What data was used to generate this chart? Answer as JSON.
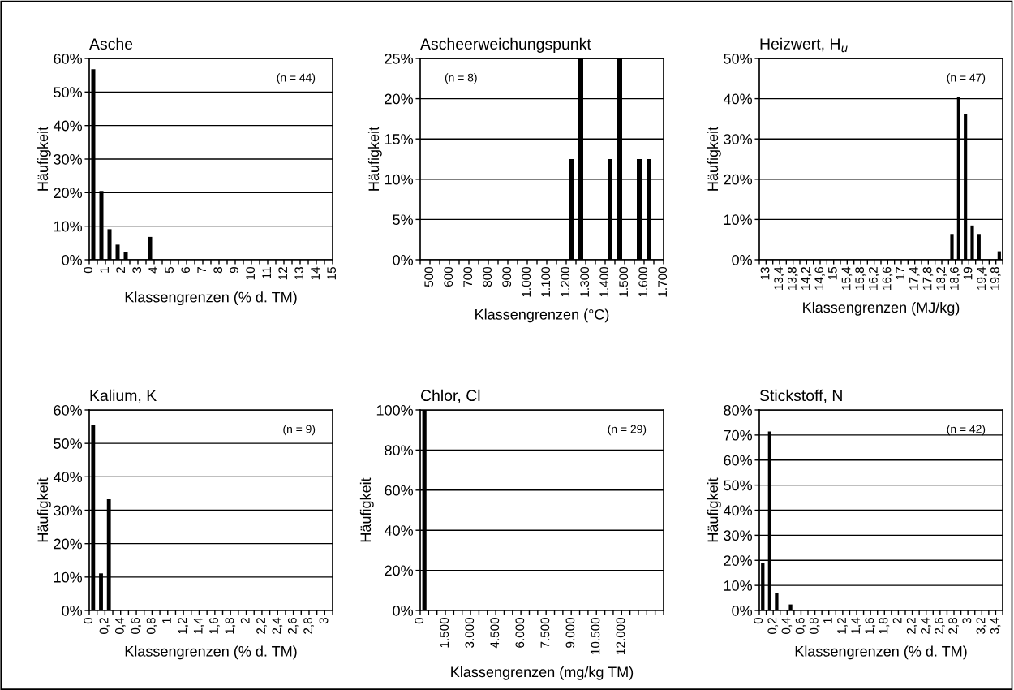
{
  "chart_data": [
    {
      "type": "histogram",
      "title": "Asche",
      "xlabel": "Klassengrenzen (% d. TM)",
      "ylabel": "Häufigkeit",
      "annotations": [
        "(n = 44)"
      ],
      "color": "#000000",
      "grid": "y",
      "bins": [
        0,
        0.5,
        1,
        1.5,
        2,
        2.5,
        3,
        3.5,
        4,
        4.5,
        5,
        5.5,
        6,
        6.5,
        7,
        7.5,
        8,
        8.5,
        9,
        9.5,
        10,
        10.5,
        11,
        11.5,
        12,
        12.5,
        13,
        13.5,
        14,
        14.5,
        15
      ],
      "values": [
        56.8,
        20.5,
        9.1,
        4.5,
        2.3,
        0,
        0,
        6.8,
        0,
        0,
        0,
        0,
        0,
        0,
        0,
        0,
        0,
        0,
        0,
        0,
        0,
        0,
        0,
        0,
        0,
        0,
        0,
        0,
        0,
        0
      ],
      "xlim": [
        0,
        15
      ],
      "xticks": [
        0,
        {
          "value": 0.5,
          "label": null
        },
        1,
        {
          "value": 1.5,
          "label": null
        },
        2,
        {
          "value": 2.5,
          "label": null
        },
        3,
        {
          "value": 3.5,
          "label": null
        },
        4,
        {
          "value": 4.5,
          "label": null
        },
        5,
        {
          "value": 5.5,
          "label": null
        },
        6,
        {
          "value": 6.5,
          "label": null
        },
        7,
        {
          "value": 7.5,
          "label": null
        },
        8,
        {
          "value": 8.5,
          "label": null
        },
        9,
        {
          "value": 9.5,
          "label": null
        },
        10,
        {
          "value": 10.5,
          "label": null
        },
        11,
        {
          "value": 11.5,
          "label": null
        },
        12,
        {
          "value": 12.5,
          "label": null
        },
        13,
        {
          "value": 13.5,
          "label": null
        },
        14,
        {
          "value": 14.5,
          "label": null
        },
        15
      ],
      "ylim": [
        0,
        60
      ],
      "yticks": [
        {
          "value": 0,
          "label": "0%"
        },
        {
          "value": 10,
          "label": "10%"
        },
        {
          "value": 20,
          "label": "20%"
        },
        {
          "value": 30,
          "label": "30%"
        },
        {
          "value": 40,
          "label": "40%"
        },
        {
          "value": 50,
          "label": "50%"
        },
        {
          "value": 60,
          "label": "60%"
        }
      ]
    },
    {
      "type": "histogram",
      "title": "Ascheerweichungspunkt",
      "xlabel": "Klassengrenzen (°C)",
      "ylabel": "Häufigkeit",
      "annotations": [
        "(n = 8)"
      ],
      "color": "#000000",
      "grid": "y",
      "bins": [
        450,
        500,
        550,
        600,
        650,
        700,
        750,
        800,
        850,
        900,
        950,
        1000,
        1050,
        1100,
        1150,
        1200,
        1250,
        1300,
        1350,
        1400,
        1450,
        1500,
        1550,
        1600,
        1650,
        1700
      ],
      "values": [
        0,
        0,
        0,
        0,
        0,
        0,
        0,
        0,
        0,
        0,
        0,
        0,
        0,
        0,
        0,
        12.5,
        25,
        0,
        0,
        12.5,
        25,
        0,
        12.5,
        12.5,
        0
      ],
      "xlim": [
        450,
        1700
      ],
      "xticks": [
        {
          "value": 450,
          "label": null
        },
        500,
        {
          "value": 550,
          "label": null
        },
        600,
        {
          "value": 650,
          "label": null
        },
        700,
        {
          "value": 750,
          "label": null
        },
        800,
        {
          "value": 850,
          "label": null
        },
        900,
        {
          "value": 950,
          "label": null
        },
        {
          "value": 1000,
          "label": "1.000"
        },
        {
          "value": 1050,
          "label": null
        },
        {
          "value": 1100,
          "label": "1.100"
        },
        {
          "value": 1150,
          "label": null
        },
        {
          "value": 1200,
          "label": "1.200"
        },
        {
          "value": 1250,
          "label": null
        },
        {
          "value": 1300,
          "label": "1.300"
        },
        {
          "value": 1350,
          "label": null
        },
        {
          "value": 1400,
          "label": "1.400"
        },
        {
          "value": 1450,
          "label": null
        },
        {
          "value": 1500,
          "label": "1.500"
        },
        {
          "value": 1550,
          "label": null
        },
        {
          "value": 1600,
          "label": "1.600"
        },
        {
          "value": 1650,
          "label": null
        },
        {
          "value": 1700,
          "label": "1.700"
        }
      ],
      "ylim": [
        0,
        25
      ],
      "yticks": [
        {
          "value": 0,
          "label": "0%"
        },
        {
          "value": 5,
          "label": "5%"
        },
        {
          "value": 10,
          "label": "10%"
        },
        {
          "value": 15,
          "label": "15%"
        },
        {
          "value": 20,
          "label": "20%"
        },
        {
          "value": 25,
          "label": "25%"
        }
      ]
    },
    {
      "type": "histogram",
      "title": "Heizwert, H$_{u}$",
      "xlabel": "Klassengrenzen (MJ/kg)",
      "ylabel": "Häufigkeit",
      "annotations": [
        "(n = 47)"
      ],
      "color": "#000000",
      "grid": "y",
      "bins": [
        12.8,
        13,
        13.2,
        13.4,
        13.6,
        13.8,
        14,
        14.2,
        14.4,
        14.6,
        14.8,
        15,
        15.2,
        15.4,
        15.6,
        15.8,
        16,
        16.2,
        16.4,
        16.6,
        16.8,
        17,
        17.2,
        17.4,
        17.6,
        17.8,
        18,
        18.2,
        18.4,
        18.6,
        18.8,
        19,
        19.2,
        19.4,
        19.6,
        19.8,
        20
      ],
      "values": [
        0,
        0,
        0,
        0,
        0,
        0,
        0,
        0,
        0,
        0,
        0,
        0,
        0,
        0,
        0,
        0,
        0,
        0,
        0,
        0,
        0,
        0,
        0,
        0,
        0,
        0,
        0,
        0,
        6.4,
        40.4,
        36.2,
        8.5,
        6.4,
        0,
        0,
        2.1
      ],
      "xlim": [
        12.8,
        20
      ],
      "xticks": [
        {
          "value": 12.8,
          "label": null
        },
        13,
        {
          "value": 13.2,
          "label": null
        },
        {
          "value": 13.4,
          "label": "13,4"
        },
        {
          "value": 13.6,
          "label": null
        },
        {
          "value": 13.8,
          "label": "13,8"
        },
        {
          "value": 14,
          "label": null
        },
        {
          "value": 14.2,
          "label": "14,2"
        },
        {
          "value": 14.4,
          "label": null
        },
        {
          "value": 14.6,
          "label": "14,6"
        },
        {
          "value": 14.8,
          "label": null
        },
        15,
        {
          "value": 15.2,
          "label": null
        },
        {
          "value": 15.4,
          "label": "15,4"
        },
        {
          "value": 15.6,
          "label": null
        },
        {
          "value": 15.8,
          "label": "15,8"
        },
        {
          "value": 16,
          "label": null
        },
        {
          "value": 16.2,
          "label": "16,2"
        },
        {
          "value": 16.4,
          "label": null
        },
        {
          "value": 16.6,
          "label": "16,6"
        },
        {
          "value": 16.8,
          "label": null
        },
        17,
        {
          "value": 17.2,
          "label": null
        },
        {
          "value": 17.4,
          "label": "17,4"
        },
        {
          "value": 17.6,
          "label": null
        },
        {
          "value": 17.8,
          "label": "17,8"
        },
        {
          "value": 18,
          "label": null
        },
        {
          "value": 18.2,
          "label": "18,2"
        },
        {
          "value": 18.4,
          "label": null
        },
        {
          "value": 18.6,
          "label": "18,6"
        },
        {
          "value": 18.8,
          "label": null
        },
        19,
        {
          "value": 19.2,
          "label": null
        },
        {
          "value": 19.4,
          "label": "19,4"
        },
        {
          "value": 19.6,
          "label": null
        },
        {
          "value": 19.8,
          "label": "19,8"
        },
        {
          "value": 20,
          "label": null
        }
      ],
      "ylim": [
        0,
        50
      ],
      "yticks": [
        {
          "value": 0,
          "label": "0%"
        },
        {
          "value": 10,
          "label": "10%"
        },
        {
          "value": 20,
          "label": "20%"
        },
        {
          "value": 30,
          "label": "30%"
        },
        {
          "value": 40,
          "label": "40%"
        },
        {
          "value": 50,
          "label": "50%"
        }
      ]
    },
    {
      "type": "histogram",
      "title": "Kalium, K",
      "xlabel": "Klassengrenzen (% d. TM)",
      "ylabel": "Häufigkeit",
      "annotations": [
        "(n = 9)"
      ],
      "color": "#000000",
      "grid": "y",
      "bins": [
        0,
        0.1,
        0.2,
        0.3,
        0.4,
        0.5,
        0.6,
        0.7,
        0.8,
        0.9,
        1,
        1.1,
        1.2,
        1.3,
        1.4,
        1.5,
        1.6,
        1.7,
        1.8,
        1.9,
        2,
        2.1,
        2.2,
        2.3,
        2.4,
        2.5,
        2.6,
        2.7,
        2.8,
        2.9,
        3,
        3.1
      ],
      "values": [
        55.6,
        11.1,
        33.3,
        0,
        0,
        0,
        0,
        0,
        0,
        0,
        0,
        0,
        0,
        0,
        0,
        0,
        0,
        0,
        0,
        0,
        0,
        0,
        0,
        0,
        0,
        0,
        0,
        0,
        0,
        0,
        0
      ],
      "xlim": [
        0,
        3.1
      ],
      "xticks": [
        0,
        {
          "value": 0.1,
          "label": null
        },
        {
          "value": 0.2,
          "label": "0,2"
        },
        {
          "value": 0.3,
          "label": null
        },
        {
          "value": 0.4,
          "label": "0,4"
        },
        {
          "value": 0.5,
          "label": null
        },
        {
          "value": 0.6,
          "label": "0,6"
        },
        {
          "value": 0.7,
          "label": null
        },
        {
          "value": 0.8,
          "label": "0,8"
        },
        {
          "value": 0.9,
          "label": null
        },
        1,
        {
          "value": 1.1,
          "label": null
        },
        {
          "value": 1.2,
          "label": "1,2"
        },
        {
          "value": 1.3,
          "label": null
        },
        {
          "value": 1.4,
          "label": "1,4"
        },
        {
          "value": 1.5,
          "label": null
        },
        {
          "value": 1.6,
          "label": "1,6"
        },
        {
          "value": 1.7,
          "label": null
        },
        {
          "value": 1.8,
          "label": "1,8"
        },
        {
          "value": 1.9,
          "label": null
        },
        2,
        {
          "value": 2.1,
          "label": null
        },
        {
          "value": 2.2,
          "label": "2,2"
        },
        {
          "value": 2.3,
          "label": null
        },
        {
          "value": 2.4,
          "label": "2,4"
        },
        {
          "value": 2.5,
          "label": null
        },
        {
          "value": 2.6,
          "label": "2,6"
        },
        {
          "value": 2.7,
          "label": null
        },
        {
          "value": 2.8,
          "label": "2,8"
        },
        {
          "value": 2.9,
          "label": null
        },
        3,
        {
          "value": 3.1,
          "label": null
        }
      ],
      "ylim": [
        0,
        60
      ],
      "yticks": [
        {
          "value": 0,
          "label": "0%"
        },
        {
          "value": 10,
          "label": "10%"
        },
        {
          "value": 20,
          "label": "20%"
        },
        {
          "value": 30,
          "label": "30%"
        },
        {
          "value": 40,
          "label": "40%"
        },
        {
          "value": 50,
          "label": "50%"
        },
        {
          "value": 60,
          "label": "60%"
        }
      ]
    },
    {
      "type": "histogram",
      "title": "Chlor, Cl",
      "xlabel": "Klassengrenzen (mg/kg TM)",
      "ylabel": "Häufigkeit",
      "annotations": [
        "(n = 29)"
      ],
      "color": "#000000",
      "grid": "y",
      "bins": [
        0,
        500,
        1000,
        1500,
        2000,
        2500,
        3000,
        3500,
        4000,
        4500,
        5000,
        5500,
        6000,
        6500,
        7000,
        7500,
        8000,
        8500,
        9000,
        9500,
        10000,
        10500,
        11000,
        11500,
        12000,
        12500,
        13000,
        13500,
        14000,
        14500
      ],
      "values": [
        100,
        0,
        0,
        0,
        0,
        0,
        0,
        0,
        0,
        0,
        0,
        0,
        0,
        0,
        0,
        0,
        0,
        0,
        0,
        0,
        0,
        0,
        0,
        0,
        0,
        0,
        0,
        0,
        0
      ],
      "xlim": [
        0,
        14500
      ],
      "xticks": [
        0,
        {
          "value": 500,
          "label": null
        },
        {
          "value": 1000,
          "label": null
        },
        {
          "value": 1500,
          "label": "1.500"
        },
        {
          "value": 2000,
          "label": null
        },
        {
          "value": 2500,
          "label": null
        },
        {
          "value": 3000,
          "label": "3.000"
        },
        {
          "value": 3500,
          "label": null
        },
        {
          "value": 4000,
          "label": null
        },
        {
          "value": 4500,
          "label": "4.500"
        },
        {
          "value": 5000,
          "label": null
        },
        {
          "value": 5500,
          "label": null
        },
        {
          "value": 6000,
          "label": "6.000"
        },
        {
          "value": 6500,
          "label": null
        },
        {
          "value": 7000,
          "label": null
        },
        {
          "value": 7500,
          "label": "7.500"
        },
        {
          "value": 8000,
          "label": null
        },
        {
          "value": 8500,
          "label": null
        },
        {
          "value": 9000,
          "label": "9.000"
        },
        {
          "value": 9500,
          "label": null
        },
        {
          "value": 10000,
          "label": null
        },
        {
          "value": 10500,
          "label": "10.500"
        },
        {
          "value": 11000,
          "label": null
        },
        {
          "value": 11500,
          "label": null
        },
        {
          "value": 12000,
          "label": "12.000"
        },
        {
          "value": 12500,
          "label": null
        },
        {
          "value": 13000,
          "label": null
        },
        {
          "value": 13500,
          "label": null
        },
        {
          "value": 14000,
          "label": null
        },
        {
          "value": 14500,
          "label": null
        }
      ],
      "ylim": [
        0,
        100
      ],
      "yticks": [
        {
          "value": 0,
          "label": "0%"
        },
        {
          "value": 20,
          "label": "20%"
        },
        {
          "value": 40,
          "label": "40%"
        },
        {
          "value": 60,
          "label": "60%"
        },
        {
          "value": 80,
          "label": "80%"
        },
        {
          "value": 100,
          "label": "100%"
        }
      ]
    },
    {
      "type": "histogram",
      "title": "Stickstoff, N",
      "xlabel": "Klassengrenzen (% d. TM)",
      "ylabel": "Häufigkeit",
      "annotations": [
        "(n = 42)"
      ],
      "color": "#000000",
      "grid": "y",
      "bins": [
        0,
        0.1,
        0.2,
        0.3,
        0.4,
        0.5,
        0.6,
        0.7,
        0.8,
        0.9,
        1,
        1.1,
        1.2,
        1.3,
        1.4,
        1.5,
        1.6,
        1.7,
        1.8,
        1.9,
        2,
        2.1,
        2.2,
        2.3,
        2.4,
        2.5,
        2.6,
        2.7,
        2.8,
        2.9,
        3,
        3.1,
        3.2,
        3.3,
        3.4,
        3.5
      ],
      "values": [
        19.0,
        71.4,
        7.1,
        0,
        2.4,
        0,
        0,
        0,
        0,
        0,
        0,
        0,
        0,
        0,
        0,
        0,
        0,
        0,
        0,
        0,
        0,
        0,
        0,
        0,
        0,
        0,
        0,
        0,
        0,
        0,
        0,
        0,
        0,
        0,
        0
      ],
      "xlim": [
        0,
        3.5
      ],
      "xticks": [
        0,
        {
          "value": 0.1,
          "label": null
        },
        {
          "value": 0.2,
          "label": "0,2"
        },
        {
          "value": 0.3,
          "label": null
        },
        {
          "value": 0.4,
          "label": "0,4"
        },
        {
          "value": 0.5,
          "label": null
        },
        {
          "value": 0.6,
          "label": "0,6"
        },
        {
          "value": 0.7,
          "label": null
        },
        {
          "value": 0.8,
          "label": "0,8"
        },
        {
          "value": 0.9,
          "label": null
        },
        1,
        {
          "value": 1.1,
          "label": null
        },
        {
          "value": 1.2,
          "label": "1,2"
        },
        {
          "value": 1.3,
          "label": null
        },
        {
          "value": 1.4,
          "label": "1,4"
        },
        {
          "value": 1.5,
          "label": null
        },
        {
          "value": 1.6,
          "label": "1,6"
        },
        {
          "value": 1.7,
          "label": null
        },
        {
          "value": 1.8,
          "label": "1,8"
        },
        {
          "value": 1.9,
          "label": null
        },
        2,
        {
          "value": 2.1,
          "label": null
        },
        {
          "value": 2.2,
          "label": "2,2"
        },
        {
          "value": 2.3,
          "label": null
        },
        {
          "value": 2.4,
          "label": "2,4"
        },
        {
          "value": 2.5,
          "label": null
        },
        {
          "value": 2.6,
          "label": "2,6"
        },
        {
          "value": 2.7,
          "label": null
        },
        {
          "value": 2.8,
          "label": "2,8"
        },
        {
          "value": 2.9,
          "label": null
        },
        3,
        {
          "value": 3.1,
          "label": null
        },
        {
          "value": 3.2,
          "label": "3,2"
        },
        {
          "value": 3.3,
          "label": null
        },
        {
          "value": 3.4,
          "label": "3,4"
        },
        {
          "value": 3.5,
          "label": null
        }
      ],
      "ylim": [
        0,
        80
      ],
      "yticks": [
        {
          "value": 0,
          "label": "0%"
        },
        {
          "value": 10,
          "label": "10%"
        },
        {
          "value": 20,
          "label": "20%"
        },
        {
          "value": 30,
          "label": "30%"
        },
        {
          "value": 40,
          "label": "40%"
        },
        {
          "value": 50,
          "label": "50%"
        },
        {
          "value": 60,
          "label": "60%"
        },
        {
          "value": 70,
          "label": "70%"
        },
        {
          "value": 80,
          "label": "80%"
        }
      ]
    }
  ]
}
